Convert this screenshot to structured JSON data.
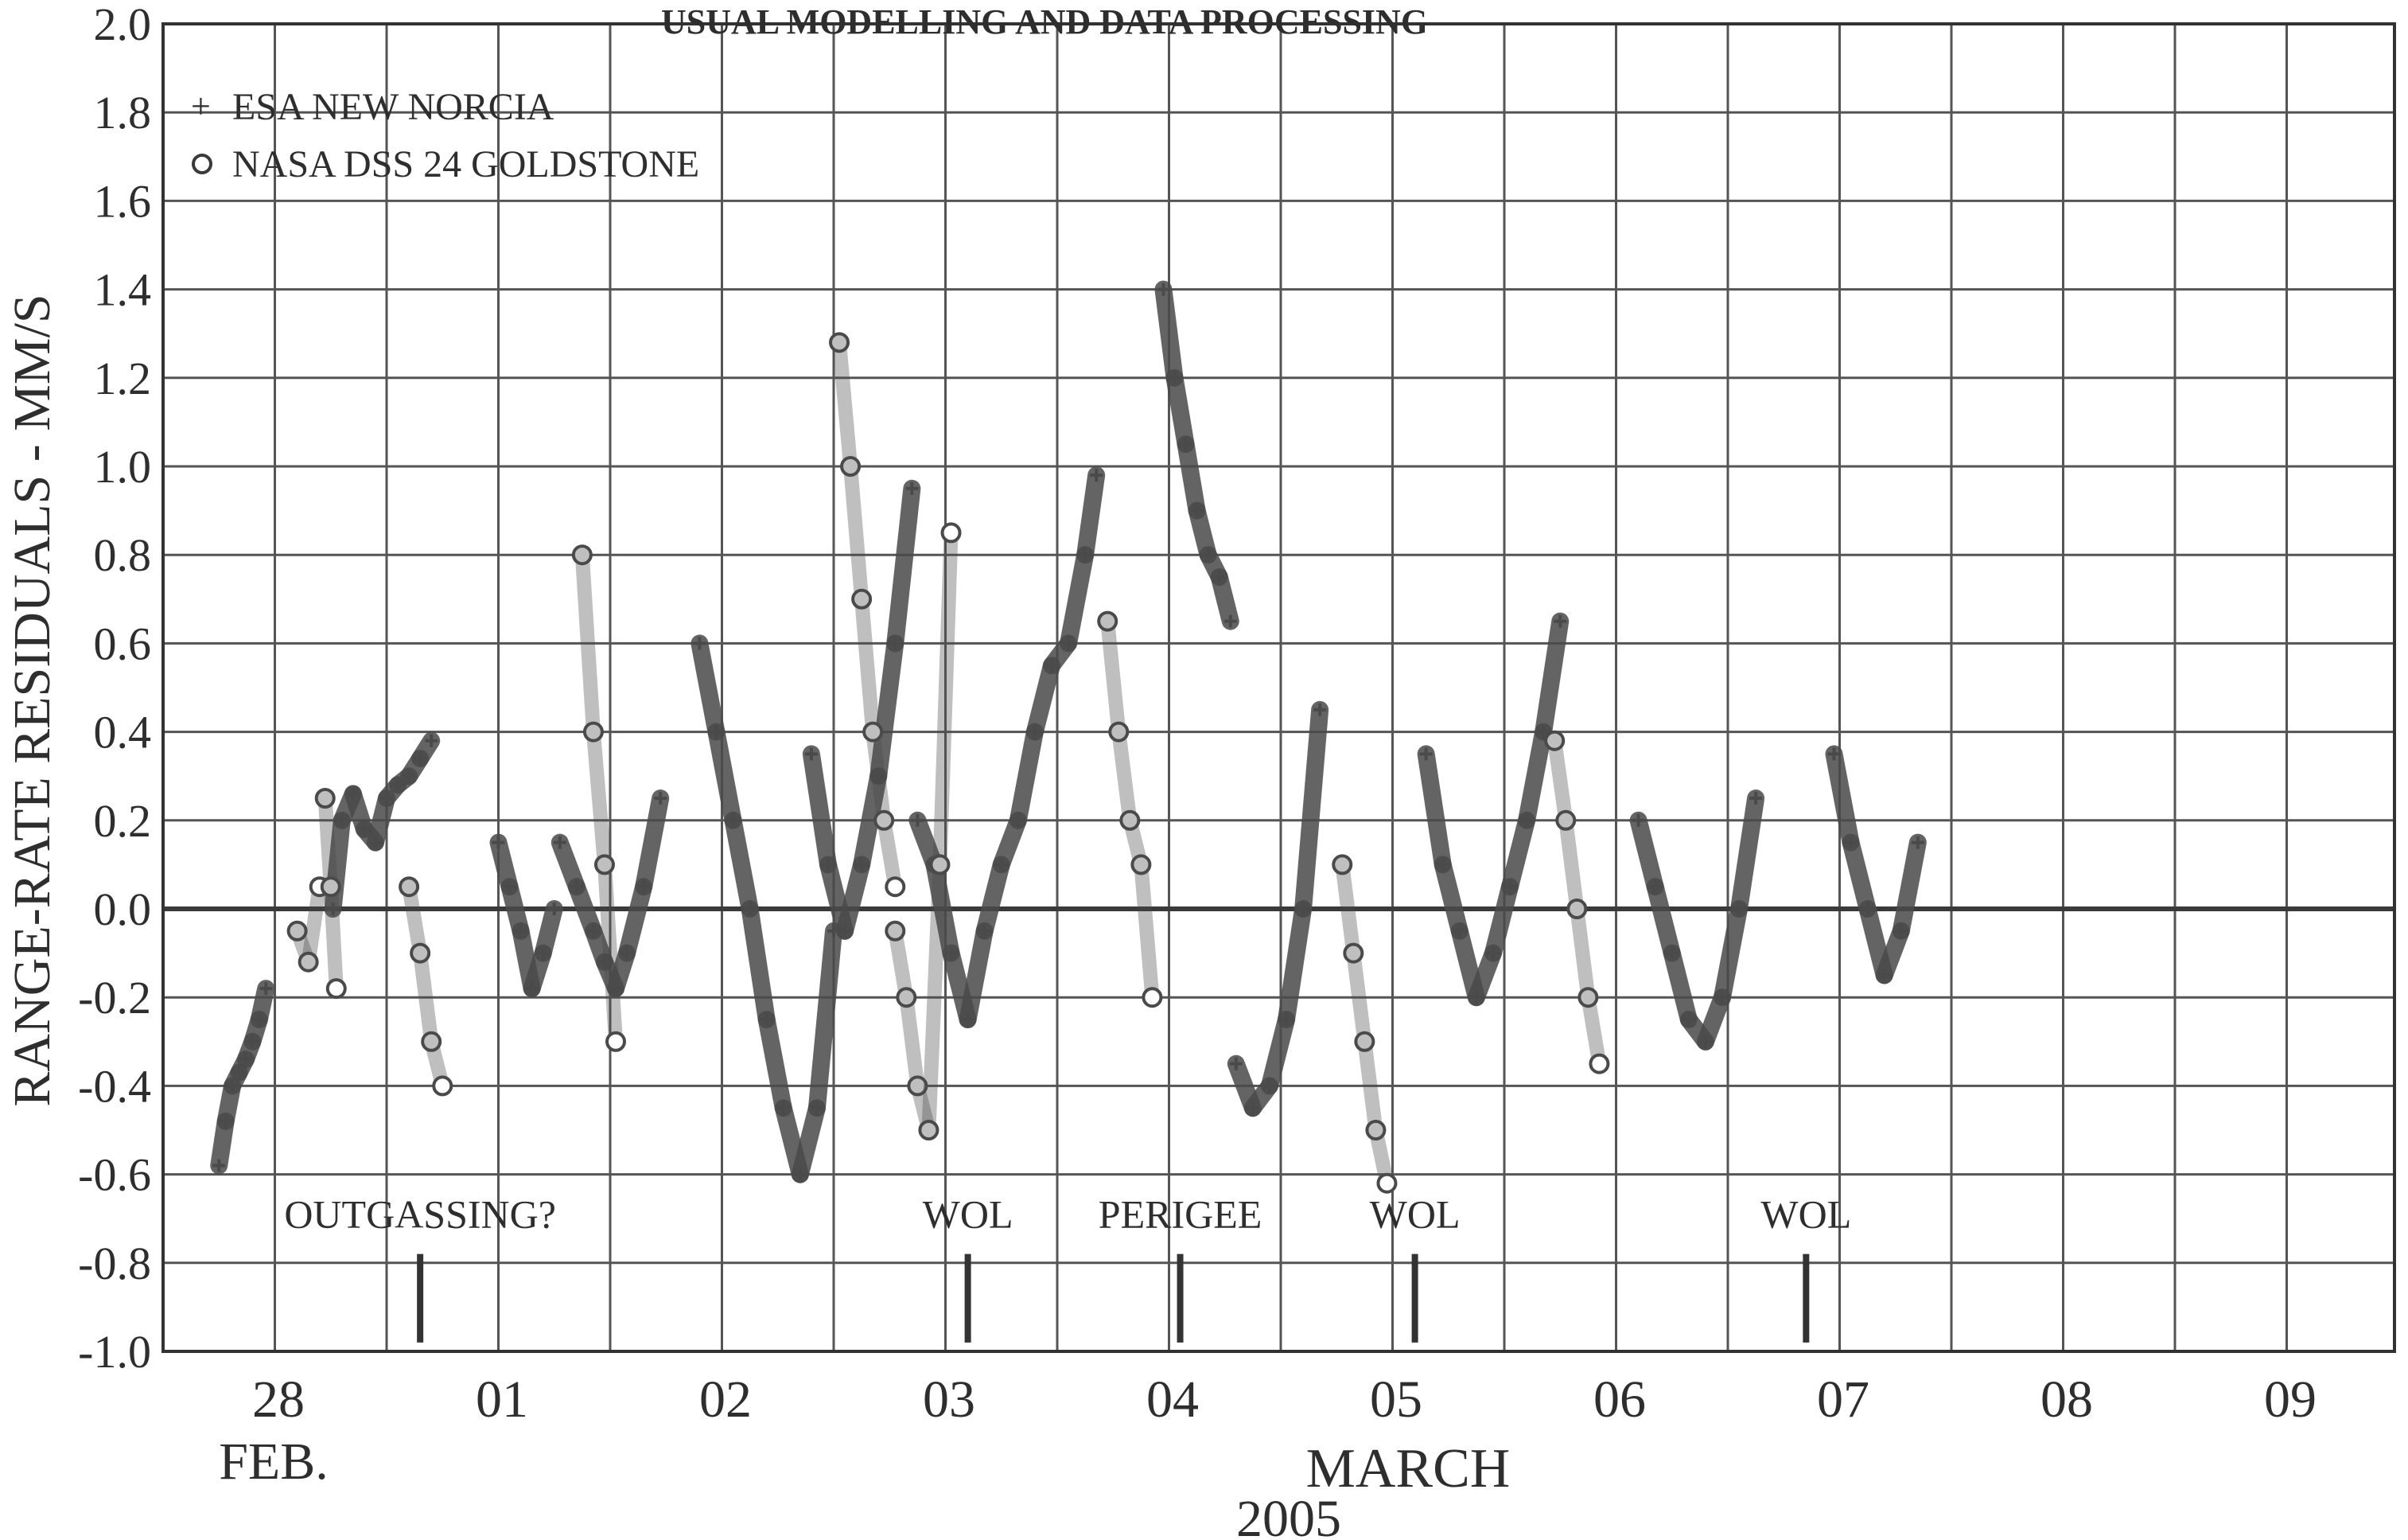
{
  "chart_data": {
    "type": "scatter",
    "title": "USUAL MODELLING AND DATA PROCESSING",
    "ylabel": "RANGE-RATE RESIDUALS - MM/S",
    "ylim": [
      -1.0,
      2.0
    ],
    "yticks": [
      "2.0",
      "1.8",
      "1.6",
      "1.4",
      "1.2",
      "1.0",
      "0.8",
      "0.6",
      "0.4",
      "0.2",
      "0.0",
      "-0.2",
      "-0.4",
      "-0.6",
      "-0.8",
      "-1.0"
    ],
    "xlim": [
      0,
      10
    ],
    "xticks": [
      "28",
      "01",
      "02",
      "03",
      "04",
      "05",
      "06",
      "07",
      "08",
      "09"
    ],
    "xsub": [
      "FEB.",
      "MARCH",
      "2005"
    ],
    "grid": true,
    "legend_position": "top-left",
    "series": [
      {
        "name": "ESA NEW NORCIA",
        "marker": "plus",
        "color": "#4a4a4a",
        "segments": [
          {
            "x": [
              0.5,
              0.56,
              0.62,
              0.68,
              0.74,
              0.8,
              0.86,
              0.92
            ],
            "y": [
              -0.58,
              -0.48,
              -0.4,
              -0.37,
              -0.34,
              -0.3,
              -0.25,
              -0.18
            ]
          },
          {
            "x": [
              1.52,
              1.6,
              1.7,
              1.8,
              1.9,
              2.0,
              2.1,
              2.2,
              2.3,
              2.4
            ],
            "y": [
              0.0,
              0.2,
              0.26,
              0.18,
              0.15,
              0.25,
              0.28,
              0.3,
              0.34,
              0.38
            ]
          },
          {
            "x": [
              3.0,
              3.1,
              3.2,
              3.3,
              3.4,
              3.5
            ],
            "y": [
              0.15,
              0.05,
              -0.05,
              -0.18,
              -0.1,
              0.0
            ]
          },
          {
            "x": [
              3.55,
              3.7,
              3.85,
              3.95,
              4.05,
              4.15,
              4.3,
              4.45
            ],
            "y": [
              0.15,
              0.05,
              -0.05,
              -0.12,
              -0.18,
              -0.1,
              0.05,
              0.25
            ]
          },
          {
            "x": [
              4.8,
              4.95,
              5.1,
              5.25,
              5.4,
              5.55,
              5.7,
              5.85,
              6.0
            ],
            "y": [
              0.6,
              0.4,
              0.2,
              0.0,
              -0.25,
              -0.45,
              -0.6,
              -0.45,
              -0.05
            ]
          },
          {
            "x": [
              5.8,
              5.95,
              6.1,
              6.25,
              6.4,
              6.55,
              6.7
            ],
            "y": [
              0.35,
              0.1,
              -0.05,
              0.1,
              0.3,
              0.6,
              0.95
            ]
          },
          {
            "x": [
              6.75,
              6.9,
              7.05,
              7.2,
              7.35,
              7.5,
              7.65,
              7.8,
              7.95,
              8.1,
              8.25,
              8.35
            ],
            "y": [
              0.2,
              0.1,
              -0.1,
              -0.25,
              -0.05,
              0.1,
              0.2,
              0.4,
              0.55,
              0.6,
              0.8,
              0.98
            ]
          },
          {
            "x": [
              8.95,
              9.05,
              9.15,
              9.25,
              9.35,
              9.45,
              9.55
            ],
            "y": [
              1.4,
              1.2,
              1.05,
              0.9,
              0.8,
              0.75,
              0.65
            ]
          },
          {
            "x": [
              9.6,
              9.75,
              9.9,
              10.05,
              10.2,
              10.35
            ],
            "y": [
              -0.35,
              -0.45,
              -0.4,
              -0.25,
              0.0,
              0.45
            ]
          },
          {
            "x": [
              11.3,
              11.45,
              11.6,
              11.75,
              11.9,
              12.05,
              12.2,
              12.35,
              12.5
            ],
            "y": [
              0.35,
              0.1,
              -0.05,
              -0.2,
              -0.1,
              0.05,
              0.2,
              0.4,
              0.65
            ]
          },
          {
            "x": [
              13.2,
              13.35,
              13.5,
              13.65,
              13.8,
              13.95,
              14.1,
              14.25
            ],
            "y": [
              0.2,
              0.05,
              -0.1,
              -0.25,
              -0.3,
              -0.2,
              0.0,
              0.25
            ]
          },
          {
            "x": [
              14.95,
              15.1,
              15.25,
              15.4,
              15.55,
              15.7
            ],
            "y": [
              0.35,
              0.15,
              0.0,
              -0.15,
              -0.05,
              0.15
            ]
          }
        ]
      },
      {
        "name": "NASA DSS 24 GOLDSTONE",
        "marker": "circle",
        "color": "#4a4a4a",
        "segments": [
          {
            "x": [
              1.2,
              1.3,
              1.4
            ],
            "y": [
              -0.05,
              -0.12,
              0.05
            ]
          },
          {
            "x": [
              1.45,
              1.5,
              1.55
            ],
            "y": [
              0.25,
              0.05,
              -0.18
            ]
          },
          {
            "x": [
              2.2,
              2.3,
              2.4,
              2.5
            ],
            "y": [
              0.05,
              -0.1,
              -0.3,
              -0.4
            ]
          },
          {
            "x": [
              3.75,
              3.85,
              3.95,
              4.05
            ],
            "y": [
              0.8,
              0.4,
              0.1,
              -0.3
            ]
          },
          {
            "x": [
              6.05,
              6.15,
              6.25,
              6.35,
              6.45,
              6.55
            ],
            "y": [
              1.28,
              1.0,
              0.7,
              0.4,
              0.2,
              0.05
            ]
          },
          {
            "x": [
              6.55,
              6.65,
              6.75,
              6.85,
              6.95,
              7.05
            ],
            "y": [
              -0.05,
              -0.2,
              -0.4,
              -0.5,
              0.1,
              0.85
            ]
          },
          {
            "x": [
              8.45,
              8.55,
              8.65,
              8.75,
              8.85
            ],
            "y": [
              0.65,
              0.4,
              0.2,
              0.1,
              -0.2
            ]
          },
          {
            "x": [
              10.55,
              10.65,
              10.75,
              10.85,
              10.95
            ],
            "y": [
              0.1,
              -0.1,
              -0.3,
              -0.5,
              -0.62
            ]
          },
          {
            "x": [
              12.45,
              12.55,
              12.65,
              12.75,
              12.85
            ],
            "y": [
              0.38,
              0.2,
              0.0,
              -0.2,
              -0.35
            ]
          }
        ]
      }
    ],
    "annotations": [
      {
        "text": "OUTGASSING?",
        "x": 1.15,
        "y": -0.72
      },
      {
        "text": "WOL",
        "x": 3.6,
        "y": -0.72
      },
      {
        "text": "PERIGEE",
        "x": 4.55,
        "y": -0.72
      },
      {
        "text": "WOL",
        "x": 5.6,
        "y": -0.72
      },
      {
        "text": "WOL",
        "x": 7.35,
        "y": -0.72
      }
    ]
  }
}
